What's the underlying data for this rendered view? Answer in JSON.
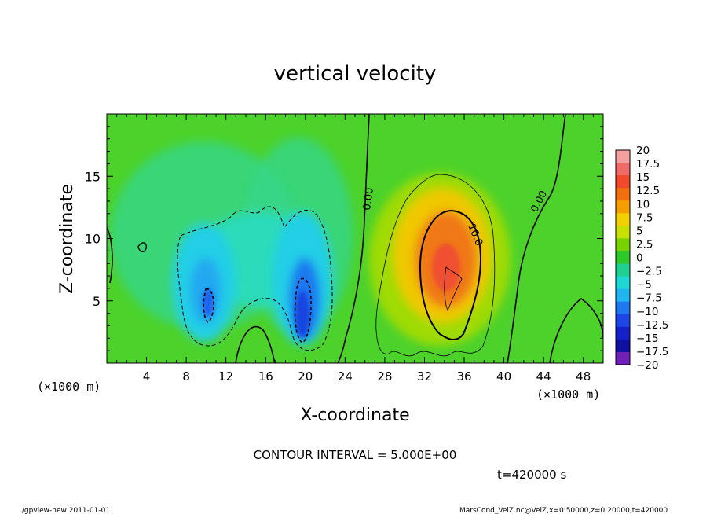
{
  "chart_data": {
    "type": "heatmap",
    "title": "vertical velocity",
    "xlabel": "X-coordinate",
    "ylabel": "Z-coordinate",
    "x_unit": "(×1000 m)",
    "y_unit": "(×1000 m)",
    "xlim": [
      0,
      50
    ],
    "ylim": [
      0,
      20
    ],
    "x_ticks": [
      "4",
      "8",
      "12",
      "16",
      "20",
      "24",
      "28",
      "32",
      "36",
      "40",
      "44",
      "48"
    ],
    "y_ticks": [
      "5",
      "10",
      "15"
    ],
    "colorbar": {
      "labels": [
        "20",
        "17.5",
        "15",
        "12.5",
        "10",
        "7.5",
        "5",
        "2.5",
        "0",
        "−2.5",
        "−5",
        "−7.5",
        "−10",
        "−12.5",
        "−15",
        "−17.5",
        "−20"
      ],
      "colors": [
        "#f5a0a0",
        "#f06a6a",
        "#f04a2a",
        "#f07010",
        "#f5a000",
        "#f5d000",
        "#c8e000",
        "#78d200",
        "#2ec82a",
        "#20d090",
        "#1ed8d8",
        "#20b4f0",
        "#1e78f0",
        "#1e46e6",
        "#1420c8",
        "#1010a0",
        "#7020b4"
      ]
    },
    "features": [
      {
        "kind": "downdraft",
        "x": 10,
        "z": 5.5,
        "min_value": -12.5
      },
      {
        "kind": "downdraft",
        "x": 19.5,
        "z": 5,
        "min_value": -15
      },
      {
        "kind": "updraft",
        "x": 34.5,
        "z": 7,
        "max_value": 12.5
      }
    ],
    "contour_labels": [
      "0.00",
      "10.0",
      "0.00"
    ],
    "contour_interval_text": "CONTOUR INTERVAL = 5.000E+00",
    "time_text": "t=420000 s"
  },
  "footer": {
    "left": "./gpview-new  2011-01-01",
    "right": "MarsCond_VelZ.nc@VelZ,x=0:50000,z=0:20000,t=420000"
  }
}
